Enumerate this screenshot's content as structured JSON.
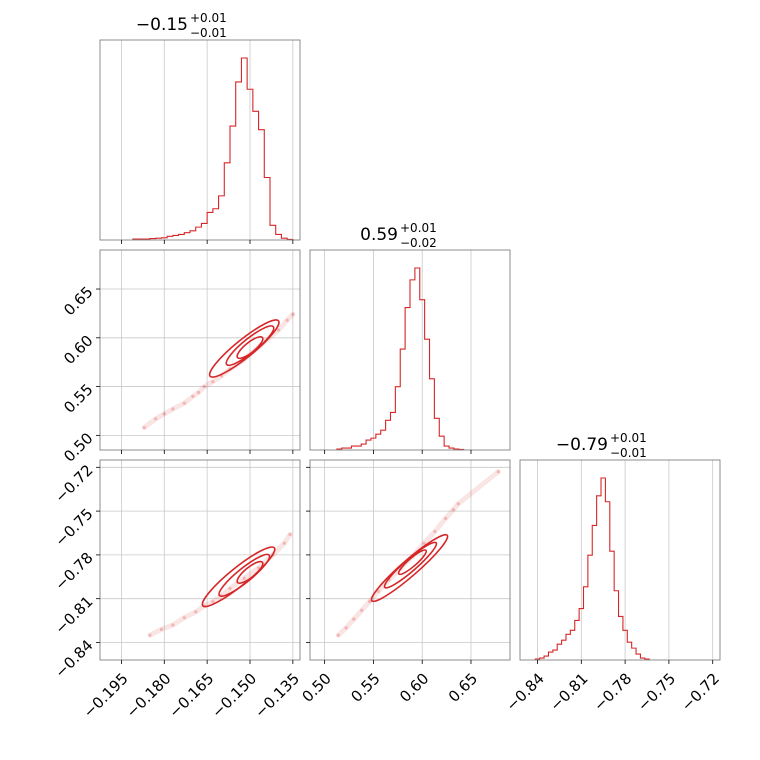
{
  "chart_data": {
    "type": "corner",
    "color": "#d62728",
    "grid": true,
    "parameters": [
      {
        "title": {
          "median": "−0.15",
          "plus": "+0.01",
          "minus": "−0.01"
        },
        "range": [
          -0.2025,
          -0.1325
        ],
        "ticks": [
          -0.195,
          -0.18,
          -0.165,
          -0.15,
          -0.135
        ],
        "tick_labels": [
          "−0.195",
          "−0.180",
          "−0.165",
          "−0.150",
          "−0.135"
        ],
        "histogram": {
          "bins": [
            -0.19,
            -0.188,
            -0.186,
            -0.184,
            -0.182,
            -0.18,
            -0.178,
            -0.176,
            -0.174,
            -0.172,
            -0.17,
            -0.168,
            -0.166,
            -0.164,
            -0.162,
            -0.16,
            -0.158,
            -0.156,
            -0.154,
            -0.152,
            -0.15,
            -0.148,
            -0.146,
            -0.144,
            -0.142,
            -0.14,
            -0.138,
            -0.136
          ],
          "counts": [
            0.5,
            0.5,
            0.5,
            0.8,
            1,
            1.2,
            2,
            2.5,
            3,
            4,
            5,
            7,
            9,
            15,
            17,
            24,
            42,
            62,
            86,
            99,
            82,
            70,
            60,
            34,
            8,
            3,
            1,
            0.3
          ]
        }
      },
      {
        "title": {
          "median": "0.59",
          "plus": "+0.01",
          "minus": "−0.02"
        },
        "range": [
          0.485,
          0.69
        ],
        "ticks": [
          0.5,
          0.55,
          0.6,
          0.65
        ],
        "tick_labels": [
          "0.50",
          "0.55",
          "0.60",
          "0.65"
        ],
        "histogram": {
          "bins": [
            0.515,
            0.52,
            0.525,
            0.53,
            0.535,
            0.54,
            0.545,
            0.55,
            0.555,
            0.56,
            0.565,
            0.57,
            0.575,
            0.58,
            0.585,
            0.59,
            0.595,
            0.6,
            0.605,
            0.61,
            0.615,
            0.62,
            0.625,
            0.63,
            0.635,
            0.64
          ],
          "counts": [
            0.5,
            1,
            1,
            2,
            2,
            3,
            5,
            6,
            8,
            10,
            15,
            19,
            32,
            51,
            72,
            86,
            92,
            76,
            56,
            36,
            16,
            7,
            2,
            1,
            0.5,
            0.3
          ]
        }
      },
      {
        "title": {
          "median": "−0.79",
          "plus": "+0.01",
          "minus": "−0.01"
        },
        "range": [
          -0.852,
          -0.715
        ],
        "ticks": [
          -0.84,
          -0.81,
          -0.78,
          -0.75,
          -0.72
        ],
        "tick_labels": [
          "−0.84",
          "−0.81",
          "−0.78",
          "−0.75",
          "−0.72"
        ],
        "histogram": {
          "bins": [
            -0.84,
            -0.837,
            -0.834,
            -0.831,
            -0.828,
            -0.825,
            -0.822,
            -0.819,
            -0.816,
            -0.813,
            -0.81,
            -0.807,
            -0.804,
            -0.801,
            -0.798,
            -0.795,
            -0.792,
            -0.789,
            -0.786,
            -0.783,
            -0.78,
            -0.777,
            -0.774,
            -0.771,
            -0.768,
            -0.765
          ],
          "counts": [
            0.5,
            1,
            2,
            4,
            5,
            8,
            10,
            13,
            15,
            20,
            26,
            37,
            53,
            68,
            83,
            92,
            80,
            55,
            35,
            22,
            15,
            9,
            6,
            3,
            1,
            0.5
          ]
        }
      }
    ],
    "pairs": [
      {
        "row": 1,
        "col": 0,
        "scatter": [
          [
            -0.187,
            0.508
          ],
          [
            -0.183,
            0.517
          ],
          [
            -0.18,
            0.522
          ],
          [
            -0.177,
            0.527
          ],
          [
            -0.173,
            0.533
          ],
          [
            -0.17,
            0.54
          ],
          [
            -0.168,
            0.544
          ],
          [
            -0.166,
            0.55
          ],
          [
            -0.163,
            0.555
          ],
          [
            -0.16,
            0.561
          ],
          [
            -0.157,
            0.568
          ],
          [
            -0.152,
            0.578
          ],
          [
            -0.146,
            0.593
          ],
          [
            -0.14,
            0.608
          ],
          [
            -0.137,
            0.618
          ],
          [
            -0.135,
            0.624
          ]
        ]
      },
      {
        "row": 2,
        "col": 0,
        "scatter": [
          [
            -0.185,
            -0.835
          ],
          [
            -0.181,
            -0.831
          ],
          [
            -0.177,
            -0.828
          ],
          [
            -0.173,
            -0.823
          ],
          [
            -0.169,
            -0.819
          ],
          [
            -0.166,
            -0.815
          ],
          [
            -0.163,
            -0.812
          ],
          [
            -0.16,
            -0.808
          ],
          [
            -0.157,
            -0.803
          ],
          [
            -0.152,
            -0.796
          ],
          [
            -0.147,
            -0.789
          ],
          [
            -0.142,
            -0.78
          ],
          [
            -0.138,
            -0.772
          ],
          [
            -0.136,
            -0.766
          ]
        ]
      },
      {
        "row": 2,
        "col": 1,
        "scatter": [
          [
            0.514,
            -0.835
          ],
          [
            0.522,
            -0.83
          ],
          [
            0.53,
            -0.824
          ],
          [
            0.538,
            -0.818
          ],
          [
            0.546,
            -0.812
          ],
          [
            0.555,
            -0.805
          ],
          [
            0.566,
            -0.797
          ],
          [
            0.578,
            -0.789
          ],
          [
            0.59,
            -0.781
          ],
          [
            0.602,
            -0.772
          ],
          [
            0.613,
            -0.764
          ],
          [
            0.624,
            -0.755
          ],
          [
            0.632,
            -0.749
          ],
          [
            0.637,
            -0.745
          ],
          [
            0.678,
            -0.723
          ]
        ]
      }
    ]
  }
}
